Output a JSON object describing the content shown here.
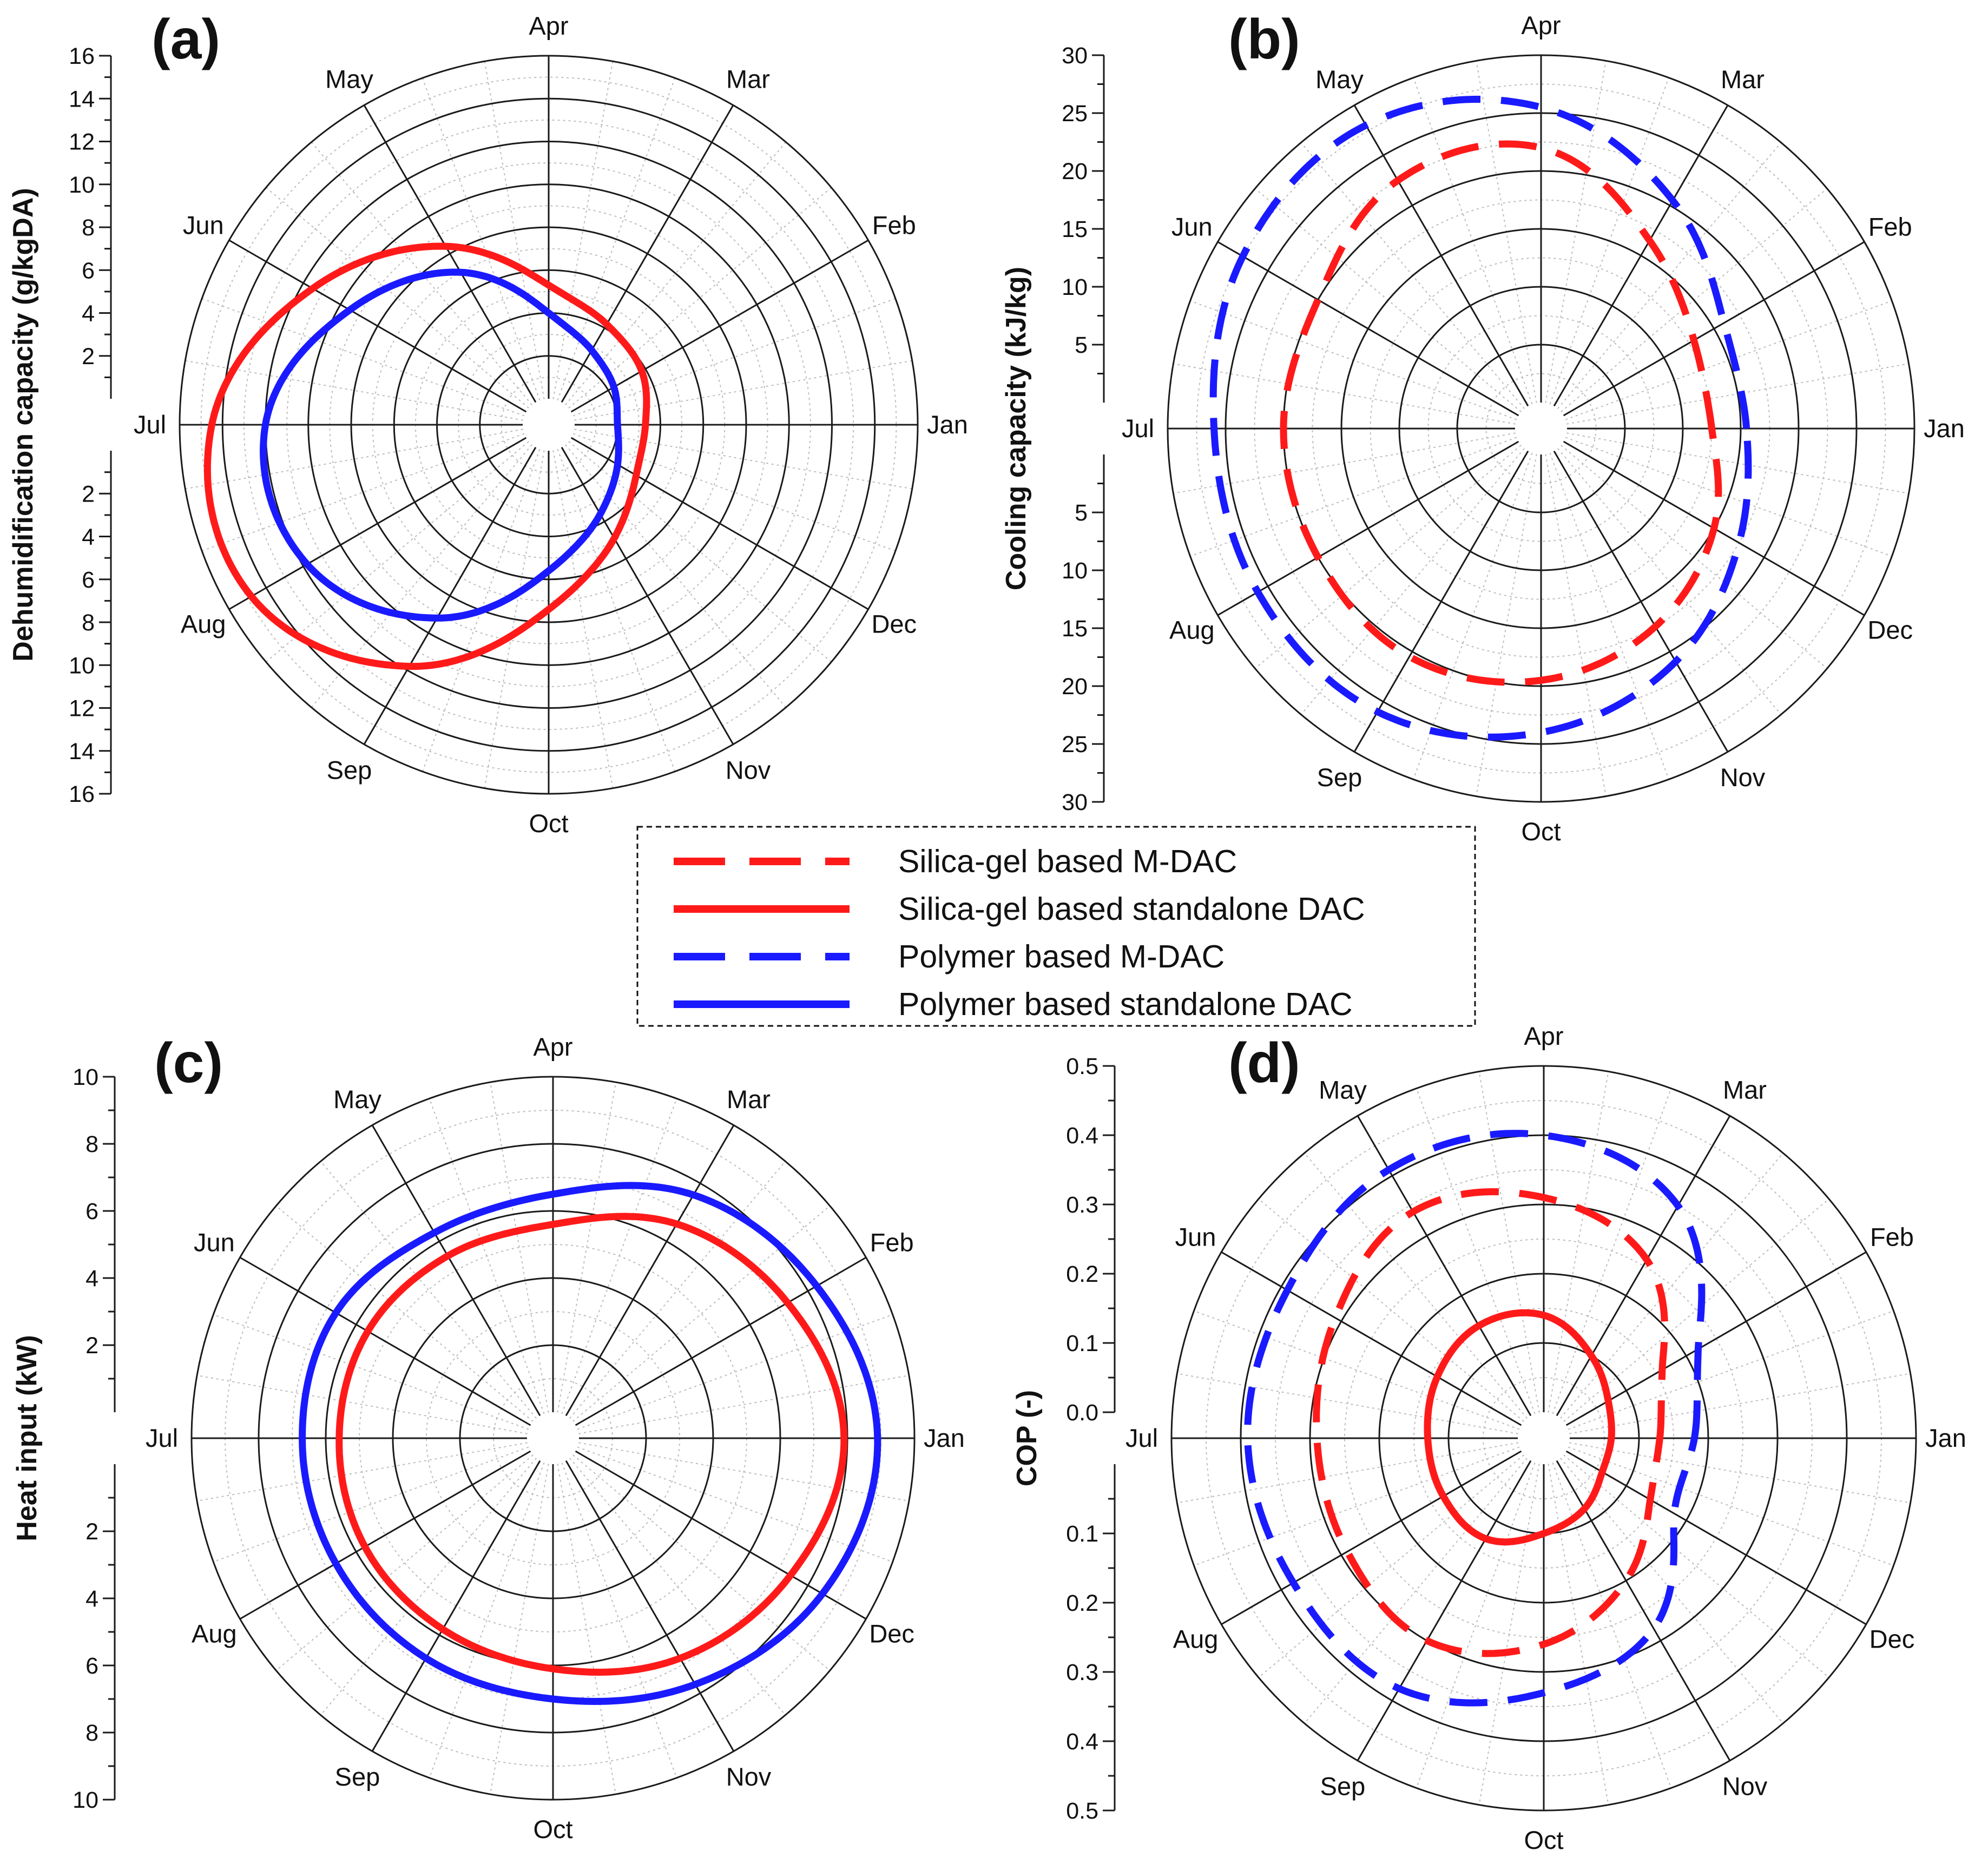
{
  "months_order": [
    "Jan",
    "Feb",
    "Mar",
    "Apr",
    "May",
    "Jun",
    "Jul",
    "Aug",
    "Sep",
    "Oct",
    "Nov",
    "Dec"
  ],
  "colors": {
    "silica": "#ff1a1a",
    "polymer": "#1a1aff",
    "grid": "#1a1a1a",
    "minor_grid": "#bdbdbd"
  },
  "legend": {
    "items": [
      {
        "label": "Silica-gel based M-DAC",
        "color": "#ff1a1a",
        "style": "dashed"
      },
      {
        "label": "Silica-gel based standalone DAC",
        "color": "#ff1a1a",
        "style": "solid"
      },
      {
        "label": "Polymer based M-DAC",
        "color": "#1a1aff",
        "style": "dashed"
      },
      {
        "label": "Polymer based standalone DAC",
        "color": "#1a1aff",
        "style": "solid"
      }
    ]
  },
  "chart_data": [
    {
      "panel": "(a)",
      "type": "polar-line",
      "ylabel": "Dehumidification capacity (g/kgDA)",
      "ylim": [
        0,
        16
      ],
      "ticks_upper": [
        "2",
        "4",
        "6",
        "8",
        "10",
        "12",
        "14",
        "16"
      ],
      "ticks_lower": [
        "2",
        "4",
        "6",
        "8",
        "10",
        "12",
        "14",
        "16"
      ],
      "months": [
        "Jan",
        "Feb",
        "Mar",
        "Apr",
        "May",
        "Jun",
        "Jul",
        "Aug",
        "Sep",
        "Oct",
        "Nov",
        "Dec"
      ],
      "series": [
        {
          "name": "Silica-gel based standalone DAC",
          "color": "#ff1a1a",
          "style": "solid",
          "values": [
            3.3,
            3.8,
            4.2,
            5.3,
            8.4,
            11.5,
            14.5,
            14.8,
            11.8,
            7.4,
            4.9,
            3.5
          ]
        },
        {
          "name": "Polymer based standalone DAC",
          "color": "#1a1aff",
          "style": "solid",
          "values": [
            2.0,
            2.3,
            2.8,
            4.0,
            7.0,
            9.5,
            12.0,
            11.8,
            9.2,
            5.6,
            3.6,
            2.5
          ]
        }
      ]
    },
    {
      "panel": "(b)",
      "type": "polar-line",
      "ylabel": "Cooling capacity (kJ/kg)",
      "ylim": [
        0,
        30
      ],
      "ticks_upper": [
        "5",
        "10",
        "15",
        "20",
        "25",
        "30"
      ],
      "ticks_lower": [
        "5",
        "10",
        "15",
        "20",
        "25",
        "30"
      ],
      "months": [
        "Jan",
        "Feb",
        "Mar",
        "Apr",
        "May",
        "Jun",
        "Jul",
        "Aug",
        "Sep",
        "Oct",
        "Nov",
        "Dec"
      ],
      "series": [
        {
          "name": "Silica-gel based M-DAC",
          "color": "#ff1a1a",
          "style": "dashed",
          "values": [
            12.5,
            13.0,
            16.5,
            22.0,
            22.5,
            20.0,
            20.0,
            20.0,
            20.5,
            19.5,
            17.5,
            15.0
          ]
        },
        {
          "name": "Polymer based M-DAC",
          "color": "#1a1aff",
          "style": "dashed",
          "values": [
            15.5,
            16.0,
            20.5,
            25.5,
            28.0,
            27.5,
            26.0,
            26.0,
            26.0,
            24.0,
            21.0,
            17.5
          ]
        }
      ]
    },
    {
      "panel": "(c)",
      "type": "polar-line",
      "ylabel": "Heat input (kW)",
      "ylim": [
        0,
        10
      ],
      "ticks_upper": [
        "2",
        "4",
        "6",
        "8",
        "10"
      ],
      "ticks_lower": [
        "2",
        "4",
        "6",
        "8",
        "10"
      ],
      "months": [
        "Jan",
        "Feb",
        "Mar",
        "Apr",
        "May",
        "Jun",
        "Jul",
        "Aug",
        "Sep",
        "Oct",
        "Nov",
        "Dec"
      ],
      "series": [
        {
          "name": "Silica-gel based standalone DAC",
          "color": "#ff1a1a",
          "style": "solid",
          "values": [
            7.9,
            7.3,
            6.6,
            5.6,
            5.5,
            5.6,
            5.6,
            5.7,
            5.8,
            6.1,
            6.8,
            7.4
          ]
        },
        {
          "name": "Polymer based standalone DAC",
          "color": "#1a1aff",
          "style": "solid",
          "values": [
            8.9,
            8.3,
            7.6,
            6.5,
            6.3,
            6.7,
            6.7,
            6.7,
            6.8,
            7.0,
            7.7,
            8.5
          ]
        }
      ]
    },
    {
      "panel": "(d)",
      "type": "polar-line",
      "ylabel": "COP (-)",
      "ylim": [
        0,
        0.5
      ],
      "ticks_upper": [
        "0.0",
        "0.1",
        "0.2",
        "0.3",
        "0.4",
        "0.5"
      ],
      "ticks_lower": [
        "0.1",
        "0.2",
        "0.3",
        "0.4",
        "0.5"
      ],
      "months": [
        "Jan",
        "Feb",
        "Mar",
        "Apr",
        "May",
        "Jun",
        "Jul",
        "Aug",
        "Sep",
        "Oct",
        "Nov",
        "Dec"
      ],
      "series": [
        {
          "name": "Silica-gel based M-DAC",
          "color": "#ff1a1a",
          "style": "dashed",
          "values": [
            0.13,
            0.16,
            0.26,
            0.31,
            0.34,
            0.31,
            0.29,
            0.29,
            0.3,
            0.26,
            0.2,
            0.14
          ]
        },
        {
          "name": "Polymer based M-DAC",
          "color": "#1a1aff",
          "style": "dashed",
          "values": [
            0.18,
            0.22,
            0.35,
            0.4,
            0.41,
            0.39,
            0.39,
            0.38,
            0.38,
            0.33,
            0.28,
            0.18
          ]
        },
        {
          "name": "Silica-gel based standalone DAC",
          "color": "#ff1a1a",
          "style": "solid",
          "values": [
            0.06,
            0.07,
            0.1,
            0.14,
            0.15,
            0.14,
            0.13,
            0.13,
            0.13,
            0.1,
            0.08,
            0.06
          ]
        }
      ]
    }
  ]
}
